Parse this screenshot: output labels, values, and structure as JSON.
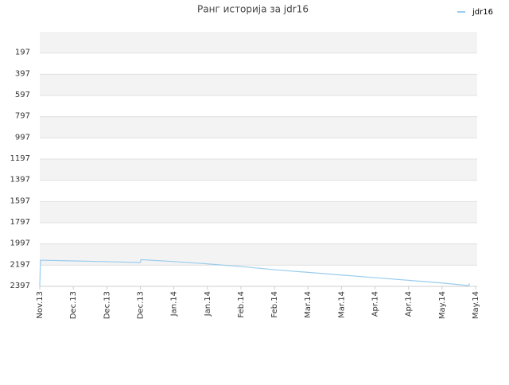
{
  "chart_data": {
    "type": "line",
    "title": "Ранг историја за jdr16",
    "x": [
      0,
      0.02,
      1,
      2,
      3,
      3.02,
      4,
      5,
      6,
      7,
      8,
      9,
      10,
      11,
      12,
      12.8,
      12.82
    ],
    "series": [
      {
        "name": "jdr16",
        "color": "#99ccee",
        "values": [
          2397,
          2150,
          2157,
          2164,
          2172,
          2145,
          2163,
          2185,
          2210,
          2240,
          2265,
          2290,
          2315,
          2340,
          2365,
          2390,
          2370
        ]
      }
    ],
    "xlim": [
      0,
      13
    ],
    "xticks": [
      {
        "value": 0,
        "label": "Nov.13"
      },
      {
        "value": 1,
        "label": "Dec.13"
      },
      {
        "value": 2,
        "label": "Dec.13"
      },
      {
        "value": 3,
        "label": "Dec.13"
      },
      {
        "value": 4,
        "label": "Jan.14"
      },
      {
        "value": 5,
        "label": "Jan.14"
      },
      {
        "value": 6,
        "label": "Feb.14"
      },
      {
        "value": 7,
        "label": "Feb.14"
      },
      {
        "value": 8,
        "label": "Mar.14"
      },
      {
        "value": 9,
        "label": "Mar.14"
      },
      {
        "value": 10,
        "label": "Apr.14"
      },
      {
        "value": 11,
        "label": "Apr.14"
      },
      {
        "value": 12,
        "label": "May.14"
      },
      {
        "value": 13,
        "label": "May.14"
      }
    ],
    "ylim": [
      2397,
      -3
    ],
    "yticks": [
      197,
      397,
      597,
      797,
      997,
      1197,
      1397,
      1597,
      1797,
      1997,
      2197,
      2397
    ],
    "grid": true,
    "legend": "top-right"
  }
}
